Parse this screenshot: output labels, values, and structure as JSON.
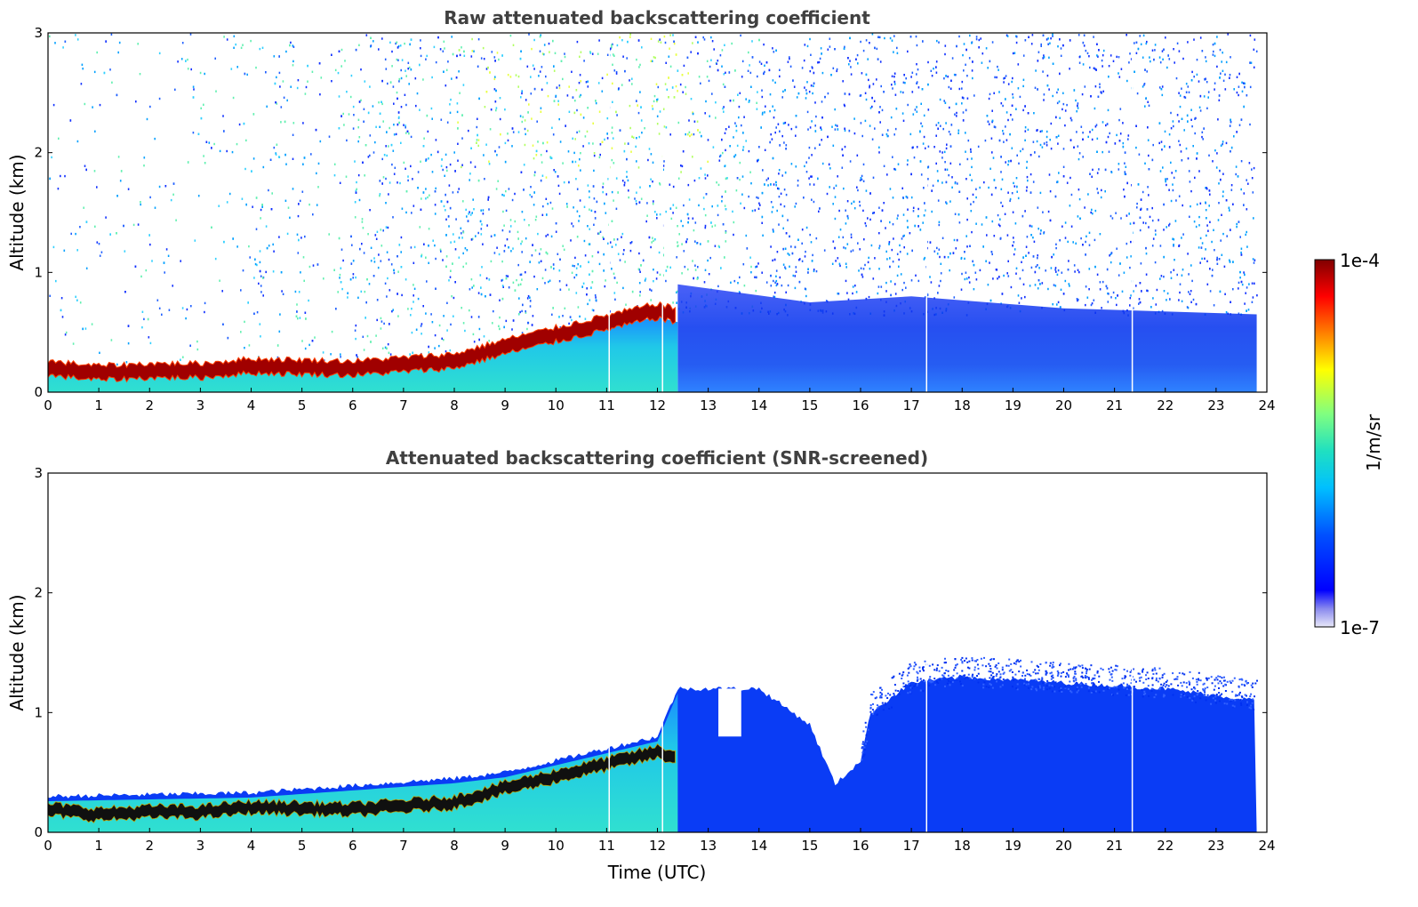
{
  "chart_data": [
    {
      "type": "heatmap",
      "title": "Raw attenuated backscattering coefficient",
      "xlabel": "",
      "ylabel": "Altitude (km)",
      "xlim": [
        0,
        24
      ],
      "ylim": [
        0,
        3
      ],
      "x_ticks": [
        "0",
        "1",
        "2",
        "3",
        "4",
        "5",
        "6",
        "7",
        "8",
        "9",
        "10",
        "11",
        "12",
        "13",
        "14",
        "15",
        "16",
        "17",
        "18",
        "19",
        "20",
        "21",
        "22",
        "23",
        "24"
      ],
      "y_ticks": [
        "0",
        "1",
        "2",
        "3"
      ],
      "data_end_time": 23.8,
      "gap_times": [
        11.05,
        12.1,
        17.3,
        21.35
      ],
      "layer_top_km": {
        "x": [
          0,
          1,
          2,
          3,
          4,
          5,
          6,
          7,
          8,
          9,
          10,
          11,
          12,
          12.4
        ],
        "y": [
          0.22,
          0.18,
          0.2,
          0.2,
          0.24,
          0.23,
          0.22,
          0.25,
          0.28,
          0.4,
          0.5,
          0.6,
          0.7,
          0.65
        ]
      },
      "noise_level": "high above boundary layer, yellow-green around 9-12 UTC at 2-3 km"
    },
    {
      "type": "heatmap",
      "title": "Attenuated backscattering coefficient (SNR-screened)",
      "xlabel": "Time (UTC)",
      "ylabel": "Altitude (km)",
      "xlim": [
        0,
        24
      ],
      "ylim": [
        0,
        3
      ],
      "x_ticks": [
        "0",
        "1",
        "2",
        "3",
        "4",
        "5",
        "6",
        "7",
        "8",
        "9",
        "10",
        "11",
        "12",
        "13",
        "14",
        "15",
        "16",
        "17",
        "18",
        "19",
        "20",
        "21",
        "22",
        "23",
        "24"
      ],
      "y_ticks": [
        "0",
        "1",
        "2",
        "3"
      ],
      "data_end_time": 23.8,
      "gap_times": [
        11.05,
        12.1,
        17.3,
        21.35
      ],
      "screened_top_km": {
        "x": [
          0,
          4,
          8,
          9,
          12,
          12.4,
          14,
          15,
          15.5,
          16,
          16.2,
          17,
          18,
          20,
          22,
          23.8
        ],
        "y": [
          0.3,
          0.33,
          0.45,
          0.5,
          0.8,
          1.2,
          1.2,
          0.9,
          0.4,
          0.6,
          1.0,
          1.25,
          1.3,
          1.25,
          1.2,
          1.1
        ]
      }
    }
  ],
  "colorbar": {
    "label": "1/m/sr",
    "max_label": "1e-4",
    "min_label": "1e-7",
    "scale": "log",
    "range": [
      1e-07,
      0.0001
    ],
    "colormap": "jet"
  }
}
